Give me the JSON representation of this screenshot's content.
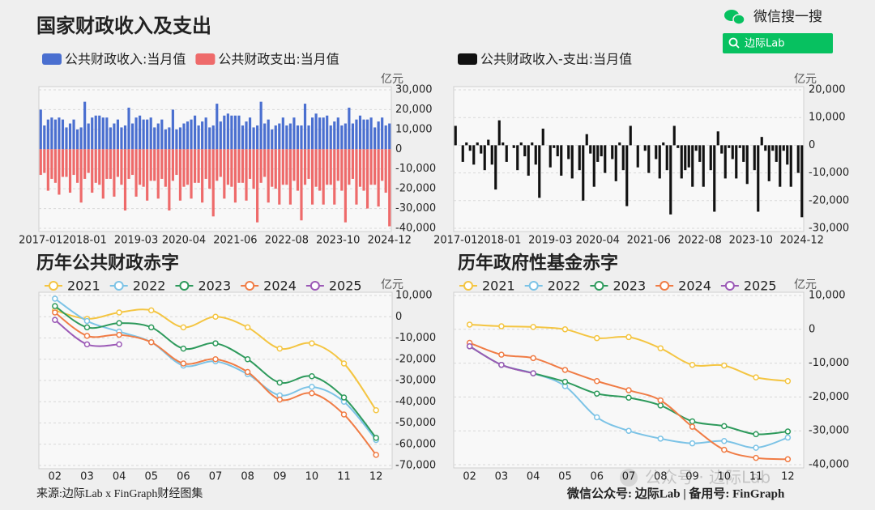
{
  "header": {
    "brand": "微信搜一搜",
    "search": "边际Lab"
  },
  "footer": {
    "source": "来源:边际Lab x FinGraph财经图集",
    "account": "微信公众号: 边际Lab  |  备用号: FinGraph"
  },
  "watermark": "公众号 · 边际Lab",
  "chart_data": [
    {
      "type": "bar",
      "title": "国家财政收入及支出",
      "y_unit": "亿元",
      "grid": true,
      "categories": [
        "2017-01",
        null,
        null,
        null,
        null,
        null,
        null,
        null,
        null,
        null,
        null,
        null,
        "2018-01",
        null,
        null,
        null,
        null,
        null,
        null,
        null,
        null,
        null,
        null,
        null,
        null,
        null,
        "2019-03",
        null,
        null,
        null,
        null,
        null,
        null,
        null,
        null,
        null,
        null,
        null,
        null,
        "2020-04",
        null,
        null,
        null,
        null,
        null,
        null,
        null,
        null,
        null,
        null,
        null,
        null,
        null,
        "2021-06",
        null,
        null,
        null,
        null,
        null,
        null,
        null,
        null,
        null,
        null,
        null,
        null,
        null,
        "2022-08",
        null,
        null,
        null,
        null,
        null,
        null,
        null,
        null,
        null,
        null,
        null,
        null,
        null,
        "2023-10",
        null,
        null,
        null,
        null,
        null,
        null,
        null,
        null,
        null,
        null,
        null,
        null,
        null,
        "2024-12"
      ],
      "series": [
        {
          "name": "公共财政收入:当月值",
          "color": "#4a6fd0",
          "values": [
            20000,
            12000,
            15000,
            16000,
            15000,
            16000,
            15000,
            11000,
            13000,
            15000,
            10000,
            11000,
            24000,
            13000,
            16000,
            17000,
            17000,
            16000,
            16000,
            11000,
            13000,
            15000,
            11000,
            12000,
            21000,
            13000,
            16000,
            17000,
            15000,
            15000,
            16000,
            11000,
            13000,
            15000,
            10000,
            11000,
            20000,
            10000,
            11000,
            13000,
            14000,
            15000,
            17000,
            12000,
            14000,
            16000,
            11000,
            12000,
            23000,
            14000,
            17000,
            18000,
            17000,
            17000,
            17000,
            12000,
            14000,
            16000,
            11000,
            12000,
            24000,
            13000,
            15000,
            10000,
            12000,
            13000,
            16000,
            12000,
            13000,
            16000,
            12000,
            12000,
            23000,
            12000,
            16000,
            18000,
            16000,
            16000,
            17000,
            12000,
            14000,
            16000,
            12000,
            13000,
            21000,
            13000,
            15000,
            17000,
            15000,
            15000,
            16000,
            11000,
            14000,
            16000,
            12000,
            13000
          ]
        },
        {
          "name": "公共财政支出:当月值",
          "color": "#ee6a6a",
          "values": [
            -13000,
            -12000,
            -21000,
            -15000,
            -17000,
            -23000,
            -14000,
            -14000,
            -22000,
            -13000,
            -17000,
            -27000,
            -15000,
            -12000,
            -22000,
            -17000,
            -18000,
            -25000,
            -15000,
            -15000,
            -24000,
            -14000,
            -18000,
            -31000,
            -15000,
            -13000,
            -24000,
            -18000,
            -19000,
            -26000,
            -16000,
            -16000,
            -25000,
            -15000,
            -19000,
            -31000,
            -16000,
            -13000,
            -26000,
            -19000,
            -18000,
            -25000,
            -17000,
            -17000,
            -27000,
            -15000,
            -20000,
            -34000,
            -16000,
            -14000,
            -25000,
            -18000,
            -19000,
            -27000,
            -17000,
            -17000,
            -26000,
            -15000,
            -20000,
            -37000,
            -17000,
            -14000,
            -27000,
            -19000,
            -20000,
            -28000,
            -18000,
            -18000,
            -28000,
            -16000,
            -21000,
            -36000,
            -18000,
            -15000,
            -28000,
            -19000,
            -21000,
            -28000,
            -18000,
            -18000,
            -28000,
            -16000,
            -21000,
            -37000,
            -18000,
            -15000,
            -28000,
            -19000,
            -21000,
            -30000,
            -18000,
            -18000,
            -29000,
            -16000,
            -22000,
            -39000
          ]
        }
      ],
      "ylim": [
        -40000,
        30000
      ],
      "yticks": [
        {
          "value": 30000,
          "label": "30,000"
        },
        {
          "value": 20000,
          "label": "20,000"
        },
        {
          "value": 10000,
          "label": "10,000"
        },
        0,
        {
          "value": -10000,
          "label": "-10,000"
        },
        {
          "value": -20000,
          "label": "-20,000"
        },
        {
          "value": -30000,
          "label": "-30,000"
        },
        {
          "value": -40000,
          "label": "-40,000"
        }
      ]
    },
    {
      "type": "bar",
      "y_unit": "亿元",
      "grid": true,
      "categories": [
        "2017-01",
        null,
        null,
        null,
        null,
        null,
        null,
        null,
        null,
        null,
        null,
        null,
        "2018-01",
        null,
        null,
        null,
        null,
        null,
        null,
        null,
        null,
        null,
        null,
        null,
        null,
        null,
        "2019-03",
        null,
        null,
        null,
        null,
        null,
        null,
        null,
        null,
        null,
        null,
        null,
        null,
        "2020-04",
        null,
        null,
        null,
        null,
        null,
        null,
        null,
        null,
        null,
        null,
        null,
        null,
        null,
        "2021-06",
        null,
        null,
        null,
        null,
        null,
        null,
        null,
        null,
        null,
        null,
        null,
        null,
        null,
        "2022-08",
        null,
        null,
        null,
        null,
        null,
        null,
        null,
        null,
        null,
        null,
        null,
        null,
        null,
        "2023-10",
        null,
        null,
        null,
        null,
        null,
        null,
        null,
        null,
        null,
        null,
        null,
        null,
        null,
        "2024-12"
      ],
      "series": [
        {
          "name": "公共财政收入-支出:当月值",
          "color": "#111111",
          "values": [
            7000,
            0,
            -6000,
            1000,
            -2000,
            -7000,
            1000,
            -3000,
            -9000,
            2000,
            -7000,
            -16000,
            9000,
            1000,
            -6000,
            0,
            -1000,
            -9000,
            1000,
            -4000,
            -11000,
            1000,
            -7000,
            -19000,
            6000,
            0,
            -8000,
            -1000,
            -4000,
            -11000,
            0,
            -5000,
            -12000,
            0,
            -9000,
            -20000,
            4000,
            -3000,
            -15000,
            -6000,
            -4000,
            -10000,
            0,
            -5000,
            -13000,
            1000,
            -9000,
            -22000,
            7000,
            0,
            -8000,
            0,
            -2000,
            -10000,
            0,
            -5000,
            -12000,
            1000,
            -9000,
            -25000,
            7000,
            -1000,
            -12000,
            -9000,
            -8000,
            -15000,
            -2000,
            -6000,
            -15000,
            0,
            -9000,
            -24000,
            5000,
            -3000,
            -12000,
            -1000,
            -5000,
            -12000,
            -1000,
            -6000,
            -14000,
            0,
            -9000,
            -24000,
            3000,
            -2000,
            -13000,
            -2000,
            -6000,
            -15000,
            -2000,
            -7000,
            -15000,
            0,
            -10000,
            -26000
          ]
        }
      ],
      "ylim": [
        -30000,
        20000
      ],
      "yticks": [
        {
          "value": 20000,
          "label": "20,000"
        },
        {
          "value": 10000,
          "label": "10,000"
        },
        0,
        {
          "value": -10000,
          "label": "-10,000"
        },
        {
          "value": -20000,
          "label": "-20,000"
        },
        {
          "value": -30000,
          "label": "-30,000"
        }
      ]
    },
    {
      "type": "line",
      "title": "历年公共财政赤字",
      "y_unit": "亿元",
      "grid": true,
      "categories": [
        "02",
        "03",
        "04",
        "05",
        "06",
        "07",
        "08",
        "09",
        "10",
        "11",
        "12"
      ],
      "series": [
        {
          "name": "2021",
          "color": "#f4c542",
          "values": [
            3000,
            -1000,
            2000,
            3000,
            -5000,
            0,
            -5000,
            -15000,
            -12500,
            -22000,
            -44000
          ]
        },
        {
          "name": "2022",
          "color": "#7cc3e6",
          "values": [
            8500,
            -2000,
            -7000,
            -12000,
            -23000,
            -21000,
            -27000,
            -37000,
            -33000,
            -40000,
            -58000
          ]
        },
        {
          "name": "2023",
          "color": "#2e9a5c",
          "values": [
            5000,
            -5000,
            -3000,
            -5000,
            -15000,
            -12500,
            -20000,
            -31000,
            -28000,
            -38000,
            -57000
          ]
        },
        {
          "name": "2024",
          "color": "#f07c45",
          "values": [
            2000,
            -9000,
            -8500,
            -12000,
            -22000,
            -20000,
            -26000,
            -39000,
            -36000,
            -46000,
            -65000
          ]
        },
        {
          "name": "2025",
          "color": "#9b59b6",
          "values": [
            -1500,
            -13000,
            -13000,
            null,
            null,
            null,
            null,
            null,
            null,
            null,
            null
          ]
        }
      ],
      "ylim": [
        -70000,
        10000
      ],
      "yticks": [
        {
          "value": 10000,
          "label": "10,000"
        },
        0,
        {
          "value": -10000,
          "label": "-10,000"
        },
        {
          "value": -20000,
          "label": "-20,000"
        },
        {
          "value": -30000,
          "label": "-30,000"
        },
        {
          "value": -40000,
          "label": "-40,000"
        },
        {
          "value": -50000,
          "label": "-50,000"
        },
        {
          "value": -60000,
          "label": "-60,000"
        },
        {
          "value": -70000,
          "label": "-70,000"
        }
      ]
    },
    {
      "type": "line",
      "title": "历年政府性基金赤字",
      "y_unit": "亿元",
      "grid": true,
      "categories": [
        "02",
        "03",
        "04",
        "05",
        "06",
        "07",
        "08",
        "09",
        "10",
        "11",
        "12"
      ],
      "series": [
        {
          "name": "2021",
          "color": "#f4c542",
          "values": [
            1400,
            900,
            700,
            0,
            -2600,
            -2300,
            -5600,
            -10500,
            -10700,
            -14200,
            -15300
          ]
        },
        {
          "name": "2022",
          "color": "#7cc3e6",
          "values": [
            -5000,
            -10500,
            -13000,
            -16800,
            -26000,
            -30000,
            -32300,
            -33700,
            -33000,
            -35000,
            -32000
          ]
        },
        {
          "name": "2023",
          "color": "#2e9a5c",
          "values": [
            -5000,
            -10500,
            -13000,
            -15500,
            -19000,
            -20200,
            -22500,
            -27200,
            -28600,
            -31000,
            -30200
          ]
        },
        {
          "name": "2024",
          "color": "#f07c45",
          "values": [
            -4000,
            -7500,
            -8500,
            -12000,
            -15300,
            -18000,
            -21000,
            -28800,
            -35600,
            -38000,
            -38400
          ]
        },
        {
          "name": "2025",
          "color": "#9b59b6",
          "values": [
            -5000,
            -10500,
            -13000,
            null,
            null,
            null,
            null,
            null,
            null,
            null,
            null
          ]
        }
      ],
      "ylim": [
        -40000,
        10000
      ],
      "yticks": [
        {
          "value": 10000,
          "label": "10,000"
        },
        0,
        {
          "value": -10000,
          "label": "-10,000"
        },
        {
          "value": -20000,
          "label": "-20,000"
        },
        {
          "value": -30000,
          "label": "-30,000"
        },
        {
          "value": -40000,
          "label": "-40,000"
        }
      ]
    }
  ]
}
